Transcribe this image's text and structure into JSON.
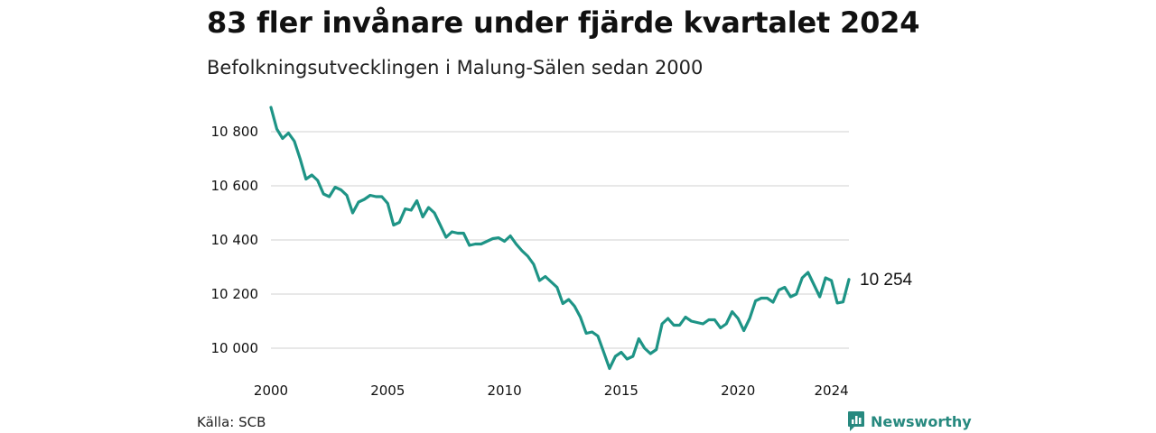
{
  "title": "83 fler invånare under fjärde kvartalet 2024",
  "subtitle": "Befolkningsutvecklingen i Malung-Sälen sedan 2000",
  "source": "Källa: SCB",
  "brand": "Newsworthy",
  "colors": {
    "line": "#1e9486",
    "grid": "#d9d9d9",
    "brand": "#27897f"
  },
  "chart_data": {
    "type": "line",
    "title": "83 fler invånare under fjärde kvartalet 2024",
    "subtitle": "Befolkningsutvecklingen i Malung-Sälen sedan 2000",
    "xlabel": "",
    "ylabel": "",
    "x_start": 2000,
    "x_step": 0.25,
    "xlim": [
      2000,
      2024.75
    ],
    "ylim": [
      9920,
      10920
    ],
    "grid": "horizontal",
    "x_ticks": [
      2000,
      2005,
      2010,
      2015,
      2020,
      2024
    ],
    "y_ticks": [
      {
        "value": 10000,
        "label": "10 000"
      },
      {
        "value": 10200,
        "label": "10 200"
      },
      {
        "value": 10400,
        "label": "10 400"
      },
      {
        "value": 10600,
        "label": "10 600"
      },
      {
        "value": 10800,
        "label": "10 800"
      }
    ],
    "end_label": "10 254",
    "series": [
      {
        "values": [
          10890,
          10810,
          10775,
          10795,
          10765,
          10700,
          10625,
          10640,
          10620,
          10570,
          10560,
          10595,
          10585,
          10565,
          10500,
          10540,
          10550,
          10565,
          10560,
          10560,
          10535,
          10455,
          10465,
          10515,
          10510,
          10545,
          10485,
          10520,
          10500,
          10455,
          10410,
          10430,
          10425,
          10425,
          10380,
          10385,
          10385,
          10395,
          10405,
          10408,
          10395,
          10415,
          10385,
          10360,
          10340,
          10310,
          10250,
          10265,
          10245,
          10225,
          10165,
          10180,
          10155,
          10115,
          10055,
          10060,
          10045,
          9985,
          9925,
          9970,
          9985,
          9960,
          9970,
          10035,
          10000,
          9980,
          9995,
          10090,
          10110,
          10085,
          10085,
          10115,
          10100,
          10095,
          10090,
          10105,
          10105,
          10075,
          10090,
          10135,
          10110,
          10065,
          10110,
          10175,
          10185,
          10185,
          10170,
          10215,
          10225,
          10190,
          10200,
          10260,
          10280,
          10235,
          10190,
          10260,
          10250,
          10167,
          10171,
          10254
        ]
      }
    ]
  }
}
